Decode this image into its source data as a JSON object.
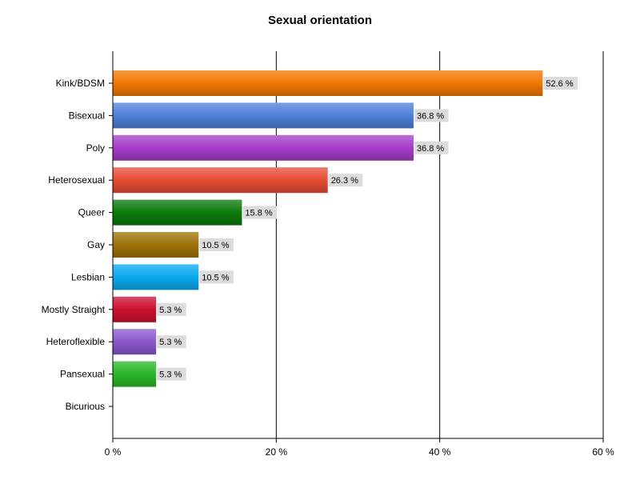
{
  "chart_data": {
    "type": "bar",
    "orientation": "horizontal",
    "title": "Sexual orientation",
    "xlabel": "",
    "ylabel": "",
    "xlim": [
      0,
      60
    ],
    "ticks": [
      {
        "value": 0,
        "label": "0 %"
      },
      {
        "value": 20,
        "label": "20 %"
      },
      {
        "value": 40,
        "label": "40 %"
      },
      {
        "value": 60,
        "label": "60 %"
      }
    ],
    "grid": true,
    "legend": "none",
    "categories": [
      "Kink/BDSM",
      "Bisexual",
      "Poly",
      "Heterosexual",
      "Queer",
      "Gay",
      "Lesbian",
      "Mostly Straight",
      "Heteroflexible",
      "Pansexual",
      "Bicurious"
    ],
    "values": [
      52.6,
      36.8,
      36.8,
      26.3,
      15.8,
      10.5,
      10.5,
      5.3,
      5.3,
      5.3,
      0
    ],
    "data_labels": [
      "52.6 %",
      "36.8 %",
      "36.8 %",
      "26.3 %",
      "15.8 %",
      "10.5 %",
      "10.5 %",
      "5.3 %",
      "5.3 %",
      "5.3 %",
      ""
    ],
    "colors": [
      "#f07800",
      "#4f7fd8",
      "#a63cc8",
      "#e84c34",
      "#0b7a0b",
      "#9e7208",
      "#0aaaee",
      "#cc1030",
      "#8a58cc",
      "#28b828",
      "#999999"
    ]
  }
}
